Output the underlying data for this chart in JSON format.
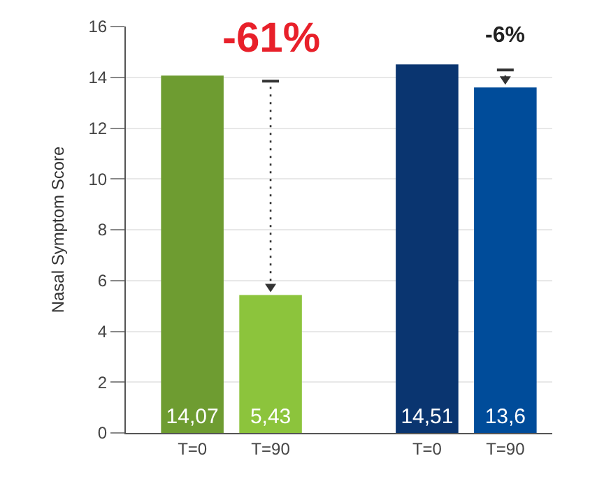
{
  "chart_data": {
    "type": "bar",
    "ylabel": "Nasal Symptom Score",
    "categories": [
      "T=0",
      "T=90",
      null,
      "T=0",
      "T=90"
    ],
    "values": [
      14.07,
      5.43,
      null,
      14.51,
      13.6
    ],
    "colors": [
      "#6e9c31",
      "#8cc43c",
      "#ffffff",
      "#0a3570",
      "#004c9a"
    ],
    "value_labels": [
      "14,07",
      "5,43",
      null,
      "14,51",
      "13,6"
    ],
    "annotations": [
      "-61%",
      "-6%"
    ],
    "ylim": [
      0,
      16
    ],
    "yticks": [
      0,
      2,
      4,
      6,
      8,
      10,
      12,
      14,
      16
    ],
    "grid": "y"
  }
}
